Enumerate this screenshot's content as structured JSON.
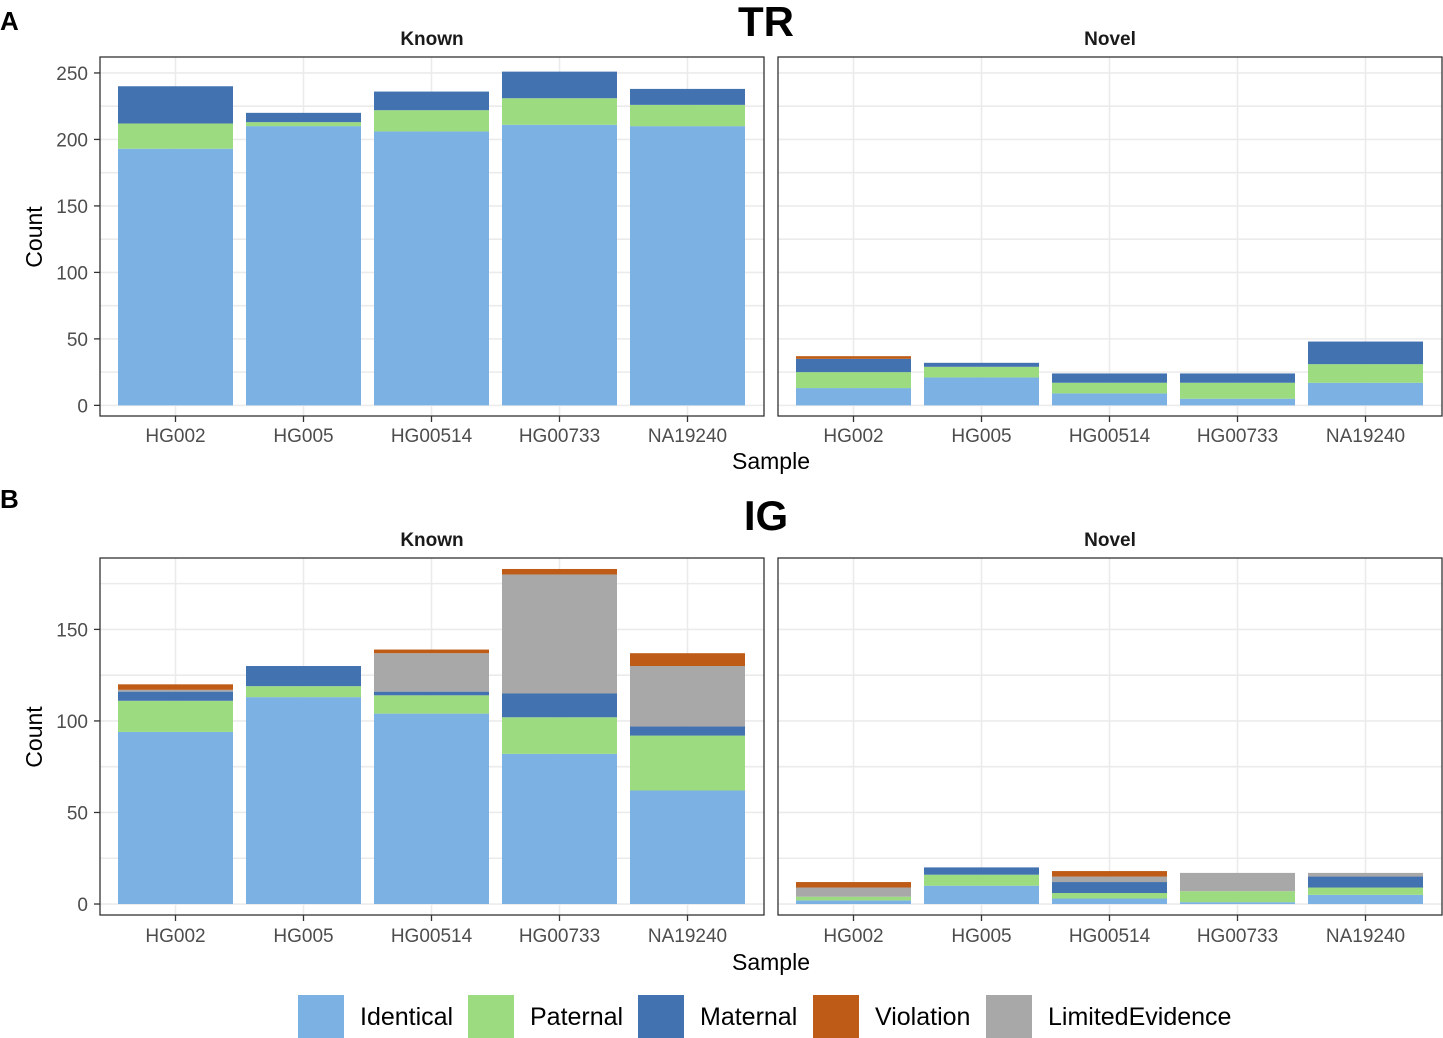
{
  "figure": {
    "legend": [
      {
        "name": "Identical",
        "color": "#7BB1E3"
      },
      {
        "name": "Paternal",
        "color": "#9DDB80"
      },
      {
        "name": "Maternal",
        "color": "#4272B0"
      },
      {
        "name": "Violation",
        "color": "#BE5C17"
      },
      {
        "name": "LimitedEvidence",
        "color": "#A8A8A8"
      }
    ]
  },
  "chart_data": [
    {
      "type": "bar",
      "stacked": true,
      "panel_label": "A",
      "title": "TR",
      "xlabel": "Sample",
      "ylabel": "Count",
      "ylim": [
        -8,
        262
      ],
      "yticks": [
        0,
        50,
        100,
        150,
        200,
        250
      ],
      "categories": [
        "HG002",
        "HG005",
        "HG00514",
        "HG00733",
        "NA19240"
      ],
      "facets": [
        {
          "name": "Known",
          "series": [
            {
              "name": "Identical",
              "values": [
                193,
                210,
                206,
                211,
                210
              ]
            },
            {
              "name": "Paternal",
              "values": [
                19,
                3,
                16,
                20,
                16
              ]
            },
            {
              "name": "Maternal",
              "values": [
                28,
                7,
                14,
                20,
                12
              ]
            },
            {
              "name": "Violation",
              "values": [
                0,
                0,
                0,
                0,
                0
              ]
            },
            {
              "name": "LimitedEvidence",
              "values": [
                0,
                0,
                0,
                0,
                0
              ]
            }
          ]
        },
        {
          "name": "Novel",
          "series": [
            {
              "name": "Identical",
              "values": [
                13,
                21,
                9,
                5,
                17
              ]
            },
            {
              "name": "Paternal",
              "values": [
                12,
                8,
                8,
                12,
                14
              ]
            },
            {
              "name": "Maternal",
              "values": [
                10,
                3,
                7,
                7,
                17
              ]
            },
            {
              "name": "Violation",
              "values": [
                2,
                0,
                0,
                0,
                0
              ]
            },
            {
              "name": "LimitedEvidence",
              "values": [
                0,
                0,
                0,
                0,
                0
              ]
            }
          ]
        }
      ]
    },
    {
      "type": "bar",
      "stacked": true,
      "panel_label": "B",
      "title": "IG",
      "xlabel": "Sample",
      "ylabel": "Count",
      "ylim": [
        -6,
        189
      ],
      "yticks": [
        0,
        50,
        100,
        150
      ],
      "categories": [
        "HG002",
        "HG005",
        "HG00514",
        "HG00733",
        "NA19240"
      ],
      "facets": [
        {
          "name": "Known",
          "series": [
            {
              "name": "Identical",
              "values": [
                94,
                113,
                104,
                82,
                62
              ]
            },
            {
              "name": "Paternal",
              "values": [
                17,
                6,
                10,
                20,
                30
              ]
            },
            {
              "name": "Maternal",
              "values": [
                5,
                11,
                2,
                13,
                5
              ]
            },
            {
              "name": "LimitedEvidence",
              "values": [
                1,
                0,
                21,
                65,
                33
              ]
            },
            {
              "name": "Violation",
              "values": [
                3,
                0,
                2,
                3,
                7
              ]
            }
          ]
        },
        {
          "name": "Novel",
          "series": [
            {
              "name": "Identical",
              "values": [
                2,
                10,
                3,
                1,
                5
              ]
            },
            {
              "name": "Paternal",
              "values": [
                2,
                6,
                3,
                6,
                4
              ]
            },
            {
              "name": "Maternal",
              "values": [
                0,
                4,
                6,
                0,
                6
              ]
            },
            {
              "name": "LimitedEvidence",
              "values": [
                5,
                0,
                3,
                10,
                2
              ]
            },
            {
              "name": "Violation",
              "values": [
                3,
                0,
                3,
                0,
                0
              ]
            }
          ]
        }
      ]
    }
  ]
}
